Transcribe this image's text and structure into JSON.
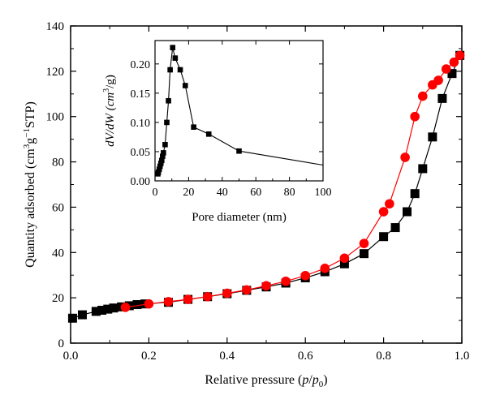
{
  "chart_data": [
    {
      "type": "scatter",
      "title": "",
      "xlabel": {
        "pre": "Relative pressure (",
        "p1": "p",
        "slash": "/",
        "p2": "p",
        "sub": "0",
        "post": ")"
      },
      "ylabel": {
        "pre": "Quantity adsorbed (cm",
        "sup1": "3",
        "mid": "g",
        "sup2": "−1",
        "post": "STP)"
      },
      "xlim": [
        0,
        1.0
      ],
      "ylim": [
        0,
        140
      ],
      "xticks": [
        "0.0",
        "0.2",
        "0.4",
        "0.6",
        "0.8",
        "1.0"
      ],
      "yticks": [
        "0",
        "20",
        "40",
        "60",
        "80",
        "100",
        "120",
        "140"
      ],
      "grid": false,
      "series": [
        {
          "marker": "square",
          "color": "#000000",
          "x": [
            0.005,
            0.03,
            0.065,
            0.08,
            0.095,
            0.11,
            0.13,
            0.15,
            0.17,
            0.19,
            0.25,
            0.3,
            0.35,
            0.4,
            0.45,
            0.5,
            0.55,
            0.6,
            0.65,
            0.7,
            0.75,
            0.8,
            0.83,
            0.86,
            0.88,
            0.9,
            0.925,
            0.95,
            0.975,
            0.995
          ],
          "y": [
            11.0,
            12.5,
            14.0,
            14.5,
            15.0,
            15.5,
            16.0,
            16.5,
            17.0,
            17.3,
            18.0,
            19.3,
            20.5,
            21.8,
            23.3,
            24.8,
            26.5,
            28.8,
            31.5,
            35.0,
            39.5,
            47.0,
            51.0,
            58.0,
            66.0,
            77.0,
            91.0,
            108.0,
            119.0,
            127.0
          ]
        },
        {
          "marker": "circle",
          "color": "#ff0000",
          "x": [
            0.14,
            0.2,
            0.25,
            0.3,
            0.35,
            0.4,
            0.45,
            0.5,
            0.55,
            0.6,
            0.65,
            0.7,
            0.75,
            0.8,
            0.815,
            0.855,
            0.88,
            0.9,
            0.925,
            0.94,
            0.96,
            0.98,
            0.995
          ],
          "y": [
            15.8,
            17.3,
            18.3,
            19.3,
            20.5,
            22.0,
            23.5,
            25.3,
            27.3,
            29.8,
            33.0,
            37.5,
            44.0,
            58.0,
            61.5,
            82.0,
            100.0,
            109.0,
            114.0,
            116.0,
            121.0,
            124.0,
            127.0
          ]
        }
      ]
    },
    {
      "type": "line",
      "title": "",
      "xlabel": "Pore diameter (nm)",
      "ylabel": {
        "pre": "dV/dW (cm",
        "sup": "3",
        "post": "/g)"
      },
      "xlim": [
        0,
        100
      ],
      "ylim": [
        0,
        0.24
      ],
      "xticks": [
        "0",
        "20",
        "40",
        "60",
        "80",
        "100"
      ],
      "yticks": [
        "0.00",
        "0.05",
        "0.10",
        "0.15",
        "0.20"
      ],
      "grid": false,
      "series": [
        {
          "marker": "square",
          "color": "#000000",
          "x": [
            1.7,
            2.0,
            2.5,
            3.0,
            3.5,
            4.0,
            4.5,
            5.0,
            6.0,
            7.0,
            8.0,
            9.0,
            10.5,
            12.0,
            15.0,
            18.0,
            23.0,
            32.0,
            50.0,
            100.0
          ],
          "y": [
            0.012,
            0.015,
            0.02,
            0.025,
            0.03,
            0.035,
            0.042,
            0.048,
            0.062,
            0.1,
            0.137,
            0.19,
            0.228,
            0.21,
            0.19,
            0.163,
            0.092,
            0.08,
            0.051,
            0.027
          ]
        }
      ]
    }
  ]
}
